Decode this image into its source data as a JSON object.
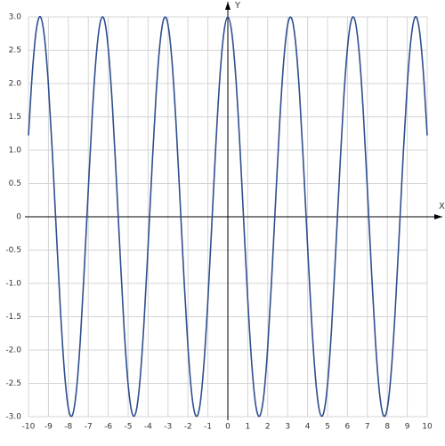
{
  "chart_data": {
    "type": "line",
    "x_label": "X",
    "y_label": "Y",
    "x": [
      -10,
      -9.8,
      -9.6,
      -9.4,
      -9.2,
      -9,
      -8.8,
      -8.6,
      -8.4,
      -8.2,
      -8,
      -7.8,
      -7.6,
      -7.4,
      -7.2,
      -7,
      -6.8,
      -6.6,
      -6.4,
      -6.2,
      -6,
      -5.8,
      -5.6,
      -5.4,
      -5.2,
      -5,
      -4.8,
      -4.6,
      -4.4,
      -4.2,
      -4,
      -3.8,
      -3.6,
      -3.4,
      -3.2,
      -3,
      -2.8,
      -2.6,
      -2.4,
      -2.2,
      -2,
      -1.8,
      -1.6,
      -1.4,
      -1.2,
      -1,
      -0.8,
      -0.6,
      -0.4,
      -0.2,
      0,
      0.2,
      0.4,
      0.6,
      0.8,
      1,
      1.2,
      1.4,
      1.6,
      1.8,
      2,
      2.2,
      2.4,
      2.6,
      2.8,
      3,
      3.2,
      3.4,
      3.6,
      3.8,
      4,
      4.2,
      4.4,
      4.6,
      4.8,
      5,
      5.2,
      5.4,
      5.6,
      5.8,
      6,
      6.2,
      6.4,
      6.6,
      6.8,
      7,
      7.2,
      7.4,
      7.6,
      7.8,
      8,
      8.2,
      8.4,
      8.6,
      8.8,
      9,
      9.2,
      9.4,
      9.6,
      9.8,
      10
    ],
    "values": [
      1.22,
      2.19,
      2.82,
      3,
      2.7,
      1.98,
      0.95,
      -0.24,
      -1.38,
      -2.31,
      -2.87,
      -2.98,
      -2.62,
      -1.85,
      -0.78,
      0.41,
      1.54,
      2.42,
      2.92,
      2.96,
      2.53,
      1.71,
      0.61,
      -0.58,
      -1.69,
      -2.52,
      -2.95,
      -2.92,
      -2.43,
      -1.56,
      -0.44,
      0.75,
      1.83,
      2.61,
      2.98,
      2.88,
      2.33,
      1.41,
      0.26,
      -0.92,
      -1.96,
      -2.69,
      -2.99,
      -2.83,
      -2.21,
      -1.25,
      -0.09,
      1.09,
      2.09,
      2.76,
      3,
      2.76,
      2.09,
      1.09,
      -0.09,
      -1.25,
      -2.21,
      -2.83,
      -2.99,
      -2.69,
      -1.96,
      -0.92,
      0.26,
      1.41,
      2.33,
      2.88,
      2.98,
      2.61,
      1.83,
      0.75,
      -0.44,
      -1.56,
      -2.43,
      -2.92,
      -2.95,
      -2.52,
      -1.69,
      -0.58,
      0.61,
      1.71,
      2.53,
      2.96,
      2.92,
      2.42,
      1.54,
      0.41,
      -0.78,
      -1.85,
      -2.62,
      -2.98,
      -2.87,
      -2.31,
      -1.38,
      -0.24,
      0.95,
      1.98,
      2.7,
      3,
      2.82,
      2.19,
      1.22
    ],
    "color": "#2f4f8f",
    "xlim": [
      -10,
      10
    ],
    "ylim": [
      -3,
      3
    ],
    "xticks": [
      -10,
      -9,
      -8,
      -7,
      -6,
      -5,
      -4,
      -3,
      -2,
      -1,
      0,
      1,
      2,
      3,
      4,
      5,
      6,
      7,
      8,
      9,
      10
    ],
    "yticks": [
      {
        "value": -3,
        "label": "-3.0"
      },
      -2.5,
      {
        "value": -2,
        "label": "-2.0"
      },
      -1.5,
      {
        "value": -1,
        "label": "-1.0"
      },
      -0.5,
      0,
      0.5,
      {
        "value": 1,
        "label": "1.0"
      },
      1.5,
      {
        "value": 2,
        "label": "2.0"
      },
      2.5,
      {
        "value": 3,
        "label": "3.0"
      }
    ],
    "grid": true
  }
}
